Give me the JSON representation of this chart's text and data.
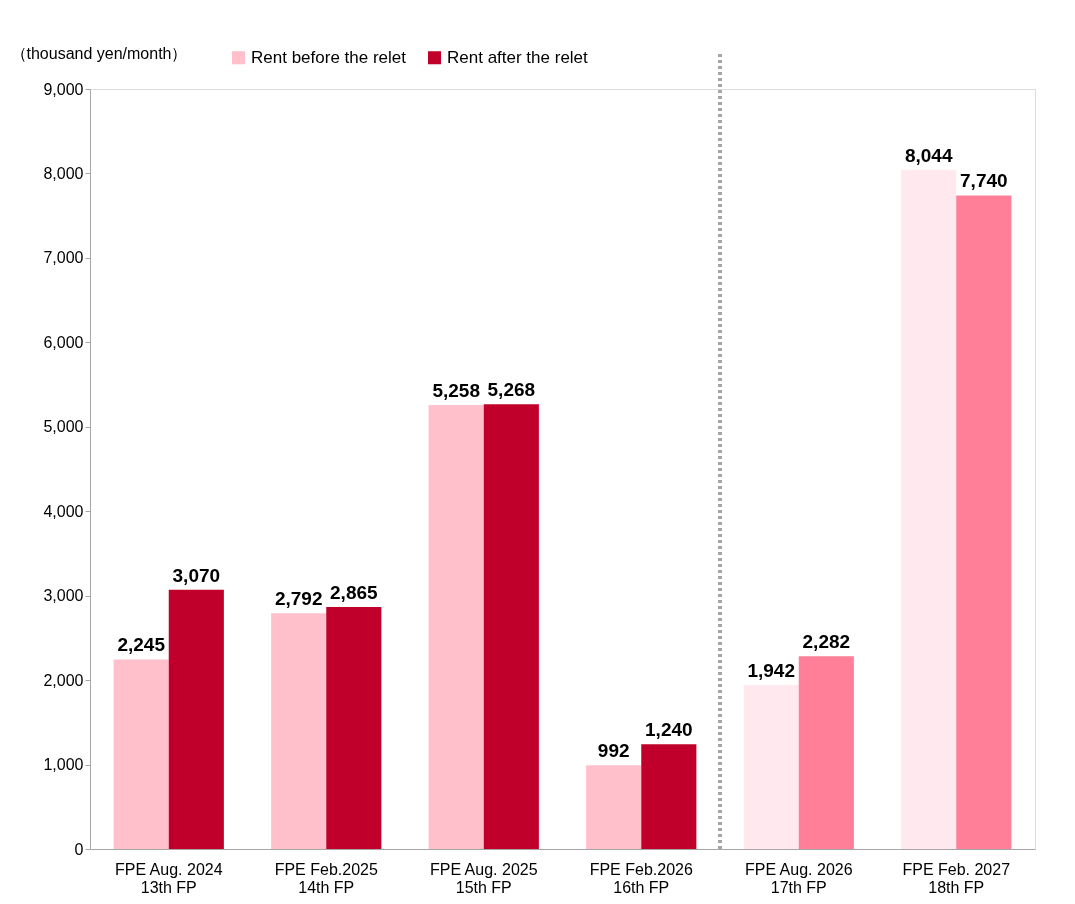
{
  "chart_data": {
    "type": "bar",
    "ylabel": "（thousand yen/month）",
    "categories": [
      "FPE Aug. 2024\n13th FP",
      "FPE Feb.2025\n14th FP",
      "FPE Aug. 2025\n15th FP",
      "FPE Feb.2026\n16th FP",
      "FPE Aug. 2026\n17th FP",
      "FPE Feb. 2027\n18th FP"
    ],
    "series": [
      {
        "name": "Rent before the relet",
        "color": "#ffc0cb",
        "colors": [
          "#ffc0cb",
          "#ffc0cb",
          "#ffc0cb",
          "#ffc0cb",
          "#ffe9ee",
          "#ffe9ee"
        ],
        "values": [
          2245,
          2792,
          5258,
          992,
          1942,
          8044
        ],
        "value_labels": [
          "2,245",
          "2,792",
          "5,258",
          "992",
          "1,942",
          "8,044"
        ]
      },
      {
        "name": "Rent after the relet",
        "color": "#c0002a",
        "colors": [
          "#c0002a",
          "#c0002a",
          "#c0002a",
          "#c0002a",
          "#ff7f99",
          "#ff7f99"
        ],
        "values": [
          3070,
          2865,
          5268,
          1240,
          2282,
          7740
        ],
        "value_labels": [
          "3,070",
          "2,865",
          "5,268",
          "1,240",
          "2,282",
          "7,740"
        ]
      }
    ],
    "ylim": [
      0,
      9000
    ],
    "yticks": [
      0,
      {
        "value": 1000,
        "label": "1,000"
      },
      {
        "value": 2000,
        "label": "2,000"
      },
      {
        "value": 3000,
        "label": "3,000"
      },
      {
        "value": 4000,
        "label": "4,000"
      },
      {
        "value": 5000,
        "label": "5,000"
      },
      {
        "value": 6000,
        "label": "6,000"
      },
      {
        "value": 7000,
        "label": "7,000"
      },
      {
        "value": 8000,
        "label": "8,000"
      },
      {
        "value": 9000,
        "label": "9,000"
      }
    ],
    "grid": false,
    "legend": "top"
  }
}
